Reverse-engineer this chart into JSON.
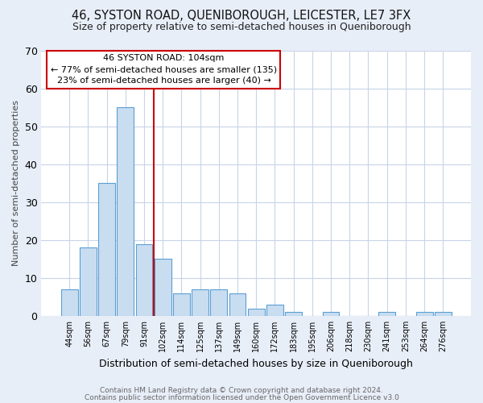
{
  "title1": "46, SYSTON ROAD, QUENIBOROUGH, LEICESTER, LE7 3FX",
  "title2": "Size of property relative to semi-detached houses in Queniborough",
  "xlabel": "Distribution of semi-detached houses by size in Queniborough",
  "ylabel": "Number of semi-detached properties",
  "bar_labels": [
    "44sqm",
    "56sqm",
    "67sqm",
    "79sqm",
    "91sqm",
    "102sqm",
    "114sqm",
    "125sqm",
    "137sqm",
    "149sqm",
    "160sqm",
    "172sqm",
    "183sqm",
    "195sqm",
    "206sqm",
    "218sqm",
    "230sqm",
    "241sqm",
    "253sqm",
    "264sqm",
    "276sqm"
  ],
  "bar_heights": [
    7,
    18,
    35,
    55,
    19,
    15,
    6,
    7,
    7,
    6,
    2,
    3,
    1,
    0,
    1,
    0,
    0,
    1,
    0,
    1,
    1
  ],
  "bar_color": "#c9ddf0",
  "bar_edge_color": "#5a9fd4",
  "vline_idx": 5,
  "vline_color": "#cc0000",
  "annotation_title": "46 SYSTON ROAD: 104sqm",
  "annotation_line1": "← 77% of semi-detached houses are smaller (135)",
  "annotation_line2": "23% of semi-detached houses are larger (40) →",
  "annotation_box_color": "#ffffff",
  "annotation_box_edge": "#cc0000",
  "footer1": "Contains HM Land Registry data © Crown copyright and database right 2024.",
  "footer2": "Contains public sector information licensed under the Open Government Licence v3.0",
  "fig_bg_color": "#e8eef8",
  "plot_bg_color": "#ffffff",
  "grid_color": "#c8d4e8",
  "ylim": [
    0,
    70
  ],
  "yticks": [
    0,
    10,
    20,
    30,
    40,
    50,
    60,
    70
  ]
}
